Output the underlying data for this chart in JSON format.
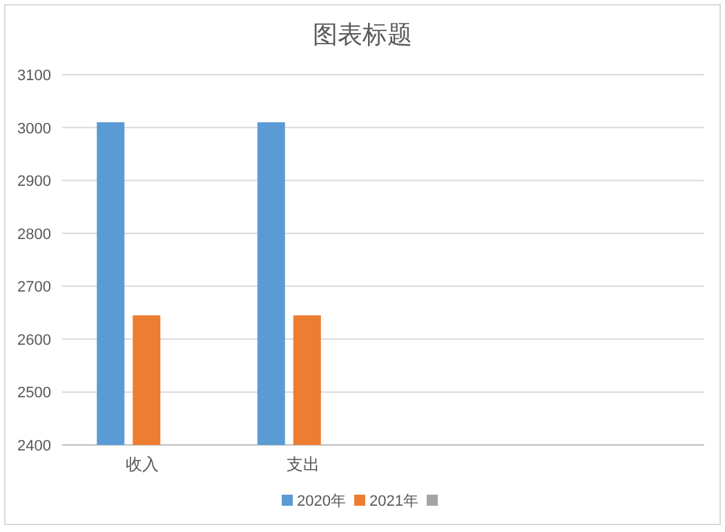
{
  "chart_data": {
    "type": "bar",
    "title": "图表标题",
    "categories": [
      "收入",
      "支出",
      null,
      null
    ],
    "series": [
      {
        "name": "2020年",
        "color": "#5b9bd5",
        "values": [
          3010,
          3010,
          null,
          null
        ]
      },
      {
        "name": "2021年",
        "color": "#ed7d31",
        "values": [
          2645,
          2645,
          null,
          null
        ]
      },
      {
        "color": "#a5a5a5",
        "values": [
          null,
          null,
          null,
          null
        ]
      }
    ],
    "ylim": [
      2400,
      3100
    ],
    "yticks": [
      2400,
      2500,
      2600,
      2700,
      2800,
      2900,
      3000,
      3100
    ],
    "grid": "y",
    "legend": "bottom"
  }
}
